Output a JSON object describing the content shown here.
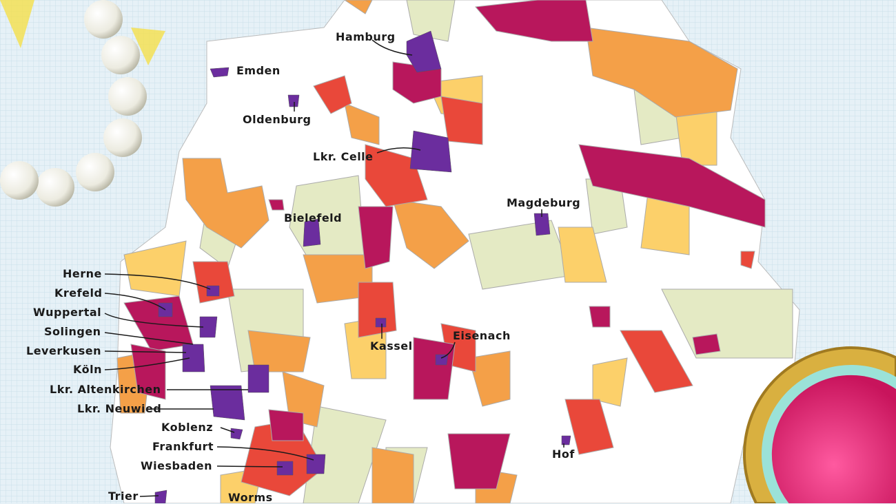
{
  "colors": {
    "background": "#e6f1f7",
    "land": "#ffffff",
    "border": "#9a9a9a",
    "purple": "#6b2d9e",
    "magenta": "#b8175c",
    "red": "#e9483a",
    "orange": "#f4a048",
    "yellow": "#fcd06a",
    "pale_green": "#e4eac4"
  },
  "decorations": [
    "pearl-necklace",
    "pink-gemstone"
  ],
  "labels": [
    {
      "name": "hamburg",
      "text": "Hamburg"
    },
    {
      "name": "emden",
      "text": "Emden"
    },
    {
      "name": "oldenburg",
      "text": "Oldenburg"
    },
    {
      "name": "lkr-celle",
      "text": "Lkr. Celle"
    },
    {
      "name": "bielefeld",
      "text": "Bielefeld"
    },
    {
      "name": "magdeburg",
      "text": "Magdeburg"
    },
    {
      "name": "herne",
      "text": "Herne"
    },
    {
      "name": "krefeld",
      "text": "Krefeld"
    },
    {
      "name": "wuppertal",
      "text": "Wuppertal"
    },
    {
      "name": "solingen",
      "text": "Solingen"
    },
    {
      "name": "leverkusen",
      "text": "Leverkusen"
    },
    {
      "name": "koeln",
      "text": "Köln"
    },
    {
      "name": "lkr-altenkirchen",
      "text": "Lkr. Altenkirchen"
    },
    {
      "name": "lkr-neuwied",
      "text": "Lkr. Neuwied"
    },
    {
      "name": "koblenz",
      "text": "Koblenz"
    },
    {
      "name": "frankfurt",
      "text": "Frankfurt"
    },
    {
      "name": "wiesbaden",
      "text": "Wiesbaden"
    },
    {
      "name": "trier",
      "text": "Trier"
    },
    {
      "name": "worms",
      "text": "Worms"
    },
    {
      "name": "kassel",
      "text": "Kassel"
    },
    {
      "name": "eisenach",
      "text": "Eisenach"
    },
    {
      "name": "hof",
      "text": "Hof"
    }
  ]
}
